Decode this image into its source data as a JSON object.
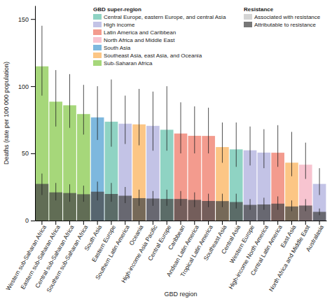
{
  "chart_data": {
    "type": "bar",
    "x_label": "GBD region",
    "y_label": "Deaths (rate per 100 000 population)",
    "categories": [
      "Western sub-Saharan Africa",
      "Eastern sub-Saharan Africa",
      "Central sub-Saharan Africa",
      "Southern sub-Saharan Africa",
      "South Asia",
      "Eastern Europe",
      "Southern Latin America",
      "Oceania",
      "High-income Asia Pacific",
      "Central Europe",
      "Caribbean",
      "Andean Latin America",
      "Tropical Latin America",
      "Southeast Asia",
      "Central Asia",
      "Western Europe",
      "High-income North America",
      "Central Latin America",
      "East Asia",
      "North Africa and Middle East",
      "Australasia"
    ],
    "series": [
      {
        "name": "Associated with resistance",
        "color": "#d4d4d4",
        "colors": [
          "#a6d77a",
          "#a6d77a",
          "#a6d77a",
          "#a6d77a",
          "#7db8de",
          "#8fd3c3",
          "#c3c3e6",
          "#fcc685",
          "#c3c3e6",
          "#8fd3c3",
          "#f39b8e",
          "#f39b8e",
          "#f39b8e",
          "#fcc685",
          "#8fd3c3",
          "#c3c3e6",
          "#c3c3e6",
          "#f39b8e",
          "#fcc685",
          "#f7c4d0",
          "#c3c3e6"
        ],
        "values": [
          114.8,
          88.5,
          85.8,
          79.3,
          76.8,
          73.6,
          72.1,
          71.6,
          70.5,
          67.6,
          64.8,
          63.1,
          63.0,
          54.7,
          53.0,
          52.3,
          50.6,
          50.5,
          43.1,
          41.6,
          27.3
        ],
        "lower": [
          93,
          70,
          69,
          64,
          60,
          55,
          57,
          56,
          52,
          52,
          50,
          50,
          50,
          43,
          40,
          41,
          39,
          40,
          33,
          31,
          19
        ],
        "upper": [
          145,
          112,
          109,
          101,
          100,
          105,
          93,
          98,
          96,
          100,
          88,
          85,
          84,
          73,
          73,
          70,
          68,
          71,
          66,
          58,
          39
        ]
      },
      {
        "name": "Attributable to resistance",
        "color": "#4a4a4a",
        "values": [
          27.3,
          21.0,
          20.5,
          19.6,
          21.5,
          19.8,
          18.5,
          16.7,
          16.4,
          16.1,
          16.1,
          15.4,
          14.6,
          14.5,
          13.8,
          11.7,
          12.0,
          12.6,
          10.5,
          11.2,
          6.5
        ],
        "lower": [
          19,
          15,
          14,
          14,
          15,
          14,
          13,
          11,
          11,
          11,
          11,
          10,
          10,
          10,
          9,
          8,
          8,
          8,
          7,
          7,
          4
        ],
        "upper": [
          35,
          28,
          27,
          26,
          29,
          28,
          25,
          23,
          22,
          23,
          22,
          21,
          20,
          20,
          20,
          16,
          17,
          18,
          15,
          16,
          9
        ]
      }
    ],
    "super_regions": {
      "title": "GBD super-region",
      "names": [
        "Central Europe, eastern Europe, and central Asia",
        "High income",
        "Latin America and Caribbean",
        "North Africa and Middle East",
        "South Asia",
        "Southeast Asia, east Asia, and Oceania",
        "Sub-Saharan Africa"
      ],
      "colors": [
        "#8fd3c3",
        "#c3c3e6",
        "#f39b8e",
        "#f7c4d0",
        "#7db8de",
        "#fcc685",
        "#a6d77a"
      ]
    },
    "resistance_legend_title": "Resistance",
    "ylim": [
      0,
      160
    ],
    "yticks": [
      0,
      50,
      100,
      150
    ],
    "grid": false,
    "legend": "top-right"
  }
}
